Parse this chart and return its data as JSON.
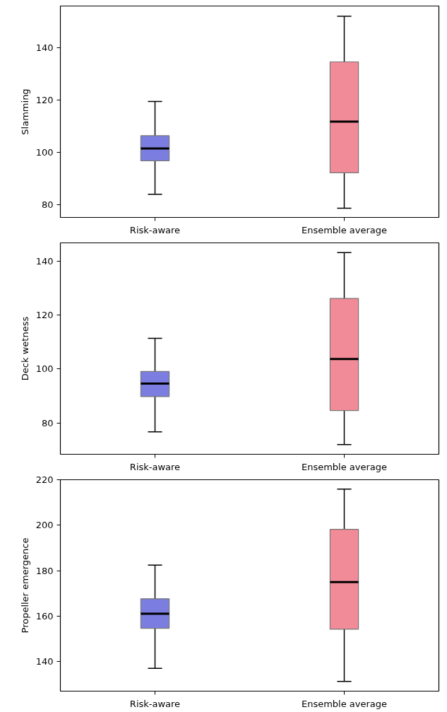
{
  "chart_data": [
    {
      "type": "box",
      "ylabel": "Slamming",
      "categories": [
        "Risk-aware",
        "Ensemble average"
      ],
      "colors": [
        "#7b7ee0",
        "#f28b98"
      ],
      "ylim": [
        75,
        156
      ],
      "yticks": [
        80,
        100,
        120,
        140
      ],
      "grid": false,
      "boxes": [
        {
          "low": 83.9,
          "q1": 96.7,
          "median": 101.4,
          "q3": 106.3,
          "high": 119.4
        },
        {
          "low": 78.5,
          "q1": 92.1,
          "median": 111.7,
          "q3": 134.6,
          "high": 152.1
        }
      ]
    },
    {
      "type": "box",
      "ylabel": "Deck wetness",
      "categories": [
        "Risk-aware",
        "Ensemble average"
      ],
      "colors": [
        "#7b7ee0",
        "#f28b98"
      ],
      "ylim": [
        68.4,
        146.8
      ],
      "yticks": [
        80,
        100,
        120,
        140
      ],
      "grid": false,
      "boxes": [
        {
          "low": 76.7,
          "q1": 89.8,
          "median": 94.6,
          "q3": 99.1,
          "high": 111.4
        },
        {
          "low": 72.0,
          "q1": 84.6,
          "median": 103.7,
          "q3": 126.2,
          "high": 143.2
        }
      ]
    },
    {
      "type": "box",
      "ylabel": "Propeller emergence",
      "categories": [
        "Risk-aware",
        "Ensemble average"
      ],
      "colors": [
        "#7b7ee0",
        "#f28b98"
      ],
      "ylim": [
        127.1,
        220
      ],
      "yticks": [
        140,
        160,
        180,
        200,
        220
      ],
      "grid": false,
      "boxes": [
        {
          "low": 137.1,
          "q1": 154.7,
          "median": 161.1,
          "q3": 167.7,
          "high": 182.5
        },
        {
          "low": 131.4,
          "q1": 154.3,
          "median": 175.0,
          "q3": 198.2,
          "high": 215.9
        }
      ]
    }
  ]
}
